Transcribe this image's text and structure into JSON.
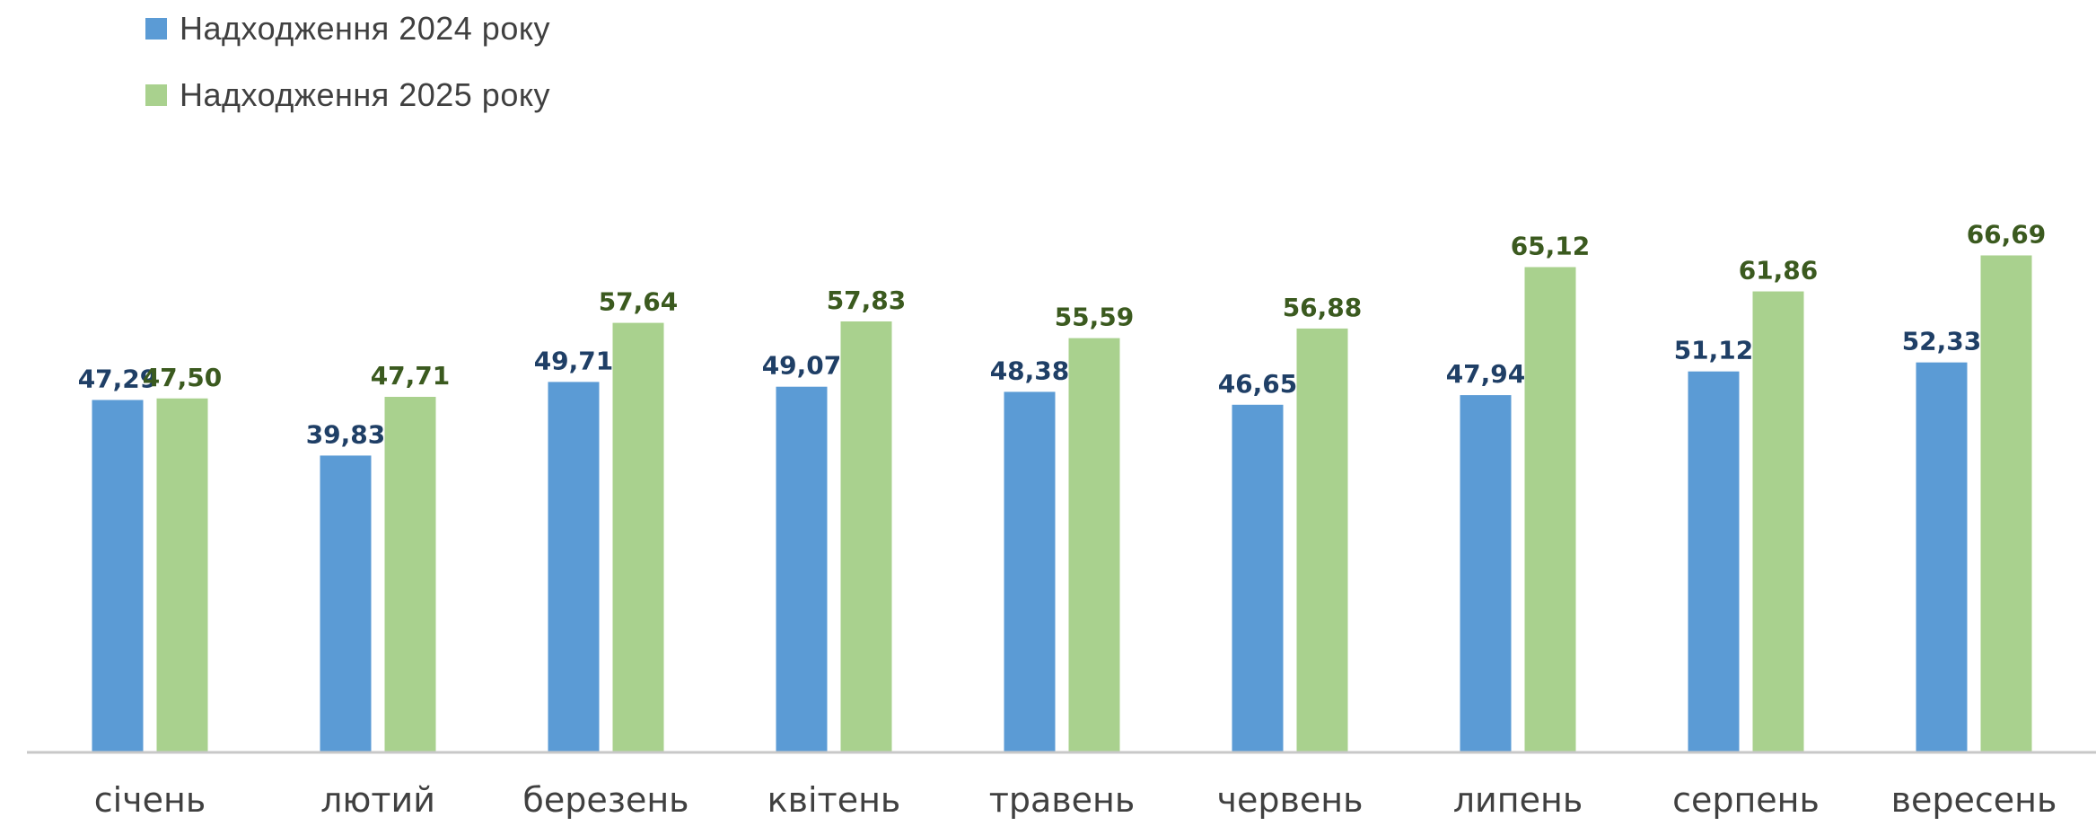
{
  "colors": {
    "series_2024": "#5b9bd5",
    "series_2025": "#a9d18e",
    "label_2024": "#1f3f66",
    "label_2025": "#3b5a1f",
    "axis": "#c8c8c8"
  },
  "chart_data": {
    "type": "bar",
    "title": "",
    "xlabel": "",
    "ylabel": "",
    "ylim": [
      0,
      70
    ],
    "grid": false,
    "legend_position": "top-left",
    "categories": [
      "січень",
      "лютий",
      "березень",
      "квітень",
      "травень",
      "червень",
      "липень",
      "серпень",
      "вересень"
    ],
    "series": [
      {
        "name": "Надходження 2024 року",
        "values": [
          47.29,
          39.83,
          49.71,
          49.07,
          48.38,
          46.65,
          47.94,
          51.12,
          52.33
        ],
        "labels": [
          "47,29",
          "39,83",
          "49,71",
          "49,07",
          "48,38",
          "46,65",
          "47,94",
          "51,12",
          "52,33"
        ]
      },
      {
        "name": "Надходження 2025 року",
        "values": [
          47.5,
          47.71,
          57.64,
          57.83,
          55.59,
          56.88,
          65.12,
          61.86,
          66.69
        ],
        "labels": [
          "47,50",
          "47,71",
          "57,64",
          "57,83",
          "55,59",
          "56,88",
          "65,12",
          "61,86",
          "66,69"
        ]
      }
    ]
  }
}
